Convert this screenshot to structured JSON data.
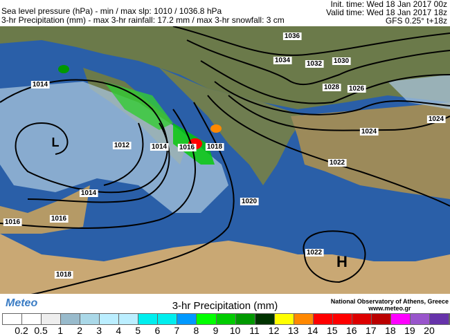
{
  "header": {
    "line1": "Sea level pressure (hPa) - min / max slp: 1010 / 1036.8 hPa",
    "line2": "3-hr Precipitation (mm)  - max 3-hr rainfall: 17.2 mm / max 3-hr snowfall: 3 cm",
    "init": "Init. time: Wed 18 Jan 2017 00z",
    "valid": "Valid time: Wed 18 Jan 2017 18z",
    "model": "GFS 0.25° t+18z"
  },
  "isobar_labels": [
    "1036",
    "1034",
    "1032",
    "1030",
    "1028",
    "1026",
    "1024",
    "1024",
    "1022",
    "1020",
    "1018",
    "1016",
    "1014",
    "1012",
    "1014",
    "1014",
    "1016",
    "1016",
    "1018",
    "1022"
  ],
  "pressure_centers": {
    "high": "H",
    "low": "L"
  },
  "footer": {
    "logo": "Meteo",
    "colorbar_title": "3-hr Precipitation (mm)",
    "org": "National Observatory of Athens, Greece",
    "url": "www.meteo.gr",
    "colors": [
      "#ffffff",
      "#ffffff",
      "#eeeeee",
      "#99bbcc",
      "#aad8e8",
      "#bbeeff",
      "#bbeeff",
      "#00eeee",
      "#00eeee",
      "#0099ff",
      "#00ff00",
      "#00cc00",
      "#009900",
      "#003300",
      "#ffff00",
      "#ff8800",
      "#ff0000",
      "#ff0000",
      "#dd0000",
      "#bb0000",
      "#ff00ff",
      "#9955cc",
      "#6633aa"
    ],
    "ticks": [
      "0.2",
      "0.5",
      "1",
      "2",
      "3",
      "4",
      "5",
      "6",
      "7",
      "8",
      "9",
      "10",
      "11",
      "12",
      "13",
      "14",
      "15",
      "16",
      "17",
      "18",
      "19",
      "20"
    ]
  }
}
